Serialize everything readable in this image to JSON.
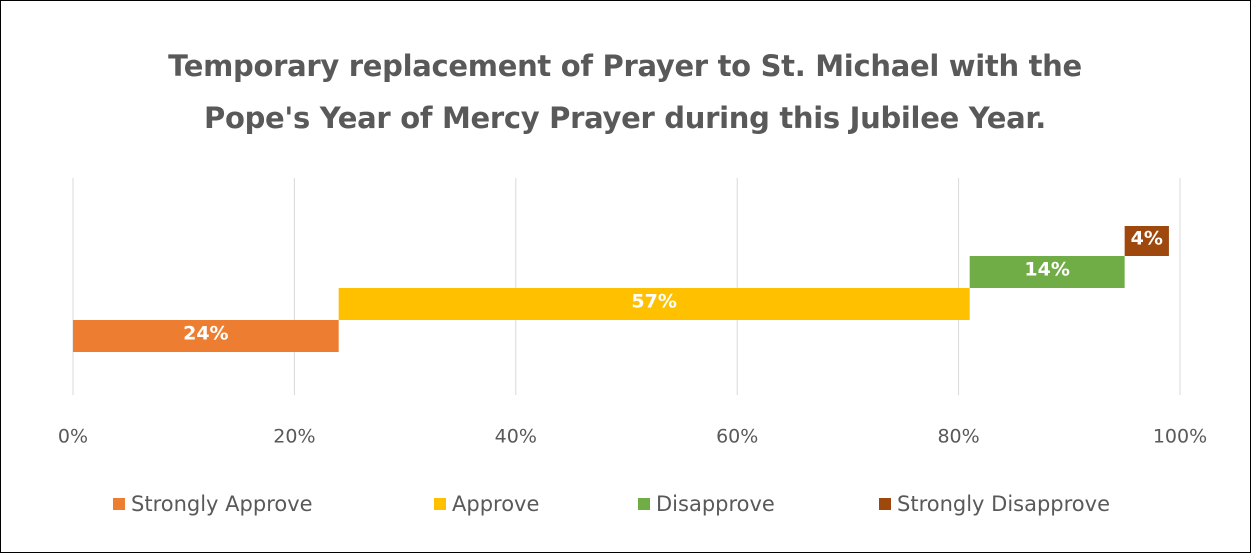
{
  "chart_data": {
    "type": "bar",
    "title": "Temporary replacement of Prayer to St. Michael with the Pope's Year of Mercy Prayer during this Jubilee Year.",
    "orientation": "horizontal",
    "stacked": true,
    "staggered": true,
    "series": [
      {
        "name": "Strongly Approve",
        "color": "#ed7d31",
        "values": [
          24
        ],
        "value_labels": [
          "24%"
        ]
      },
      {
        "name": "Approve",
        "color": "#ffc000",
        "values": [
          57
        ],
        "value_labels": [
          "57%"
        ]
      },
      {
        "name": "Disapprove",
        "color": "#70ad47",
        "values": [
          14
        ],
        "value_labels": [
          "14%"
        ]
      },
      {
        "name": "Strongly Disapprove",
        "color": "#9e480e",
        "values": [
          4
        ],
        "value_labels": [
          "4%"
        ]
      }
    ],
    "xlim": [
      0,
      100
    ],
    "xticks": [
      {
        "value": 0,
        "label": "0%"
      },
      {
        "value": 20,
        "label": "20%"
      },
      {
        "value": 40,
        "label": "40%"
      },
      {
        "value": 60,
        "label": "60%"
      },
      {
        "value": 80,
        "label": "80%"
      },
      {
        "value": 100,
        "label": "100%"
      }
    ],
    "grid": true,
    "legend": "bottom"
  }
}
